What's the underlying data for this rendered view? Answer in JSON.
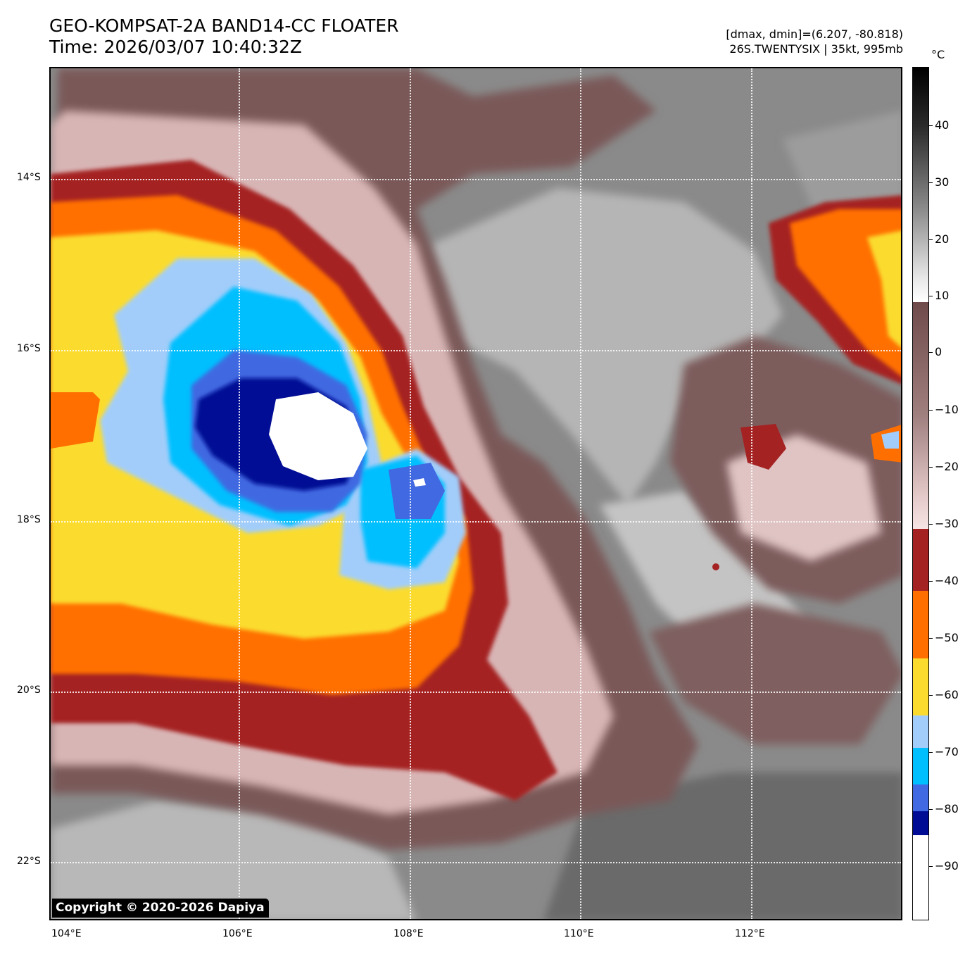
{
  "header": {
    "title_line1": "GEO-KOMPSAT-2A BAND14-CC FLOATER",
    "title_line2": "Time: 2026/03/07 10:40:32Z",
    "info_line1": "[dmax, dmin]=(6.207, -80.818)",
    "info_line2": "26S.TWENTYSIX | 35kt, 995mb"
  },
  "map": {
    "lat_labels": [
      "14°S",
      "16°S",
      "18°S",
      "20°S",
      "22°S"
    ],
    "lon_labels": [
      "104°E",
      "106°E",
      "108°E",
      "110°E",
      "112°E"
    ],
    "copyright": "Copyright © 2020-2026 Dapiya"
  },
  "colorbar": {
    "unit": "°C",
    "ticks": [
      "40",
      "30",
      "20",
      "10",
      "0",
      "−10",
      "−20",
      "−30",
      "−40",
      "−50",
      "−60",
      "−70",
      "−80",
      "−90"
    ],
    "colors": {
      "black": "#000000",
      "gray_dark": "#4a4a4a",
      "gray_light": "#cfcfcf",
      "white": "#ffffff",
      "brown_dark": "#6f4a4a",
      "brown_light": "#c9a3a3",
      "pink": "#f5dede",
      "red": "#a52222",
      "orange": "#ff6f00",
      "yellow": "#fbdc2e",
      "light_blue": "#a2cdfa",
      "cyan": "#00bfff",
      "royal_blue": "#4169e1",
      "navy": "#000c94"
    }
  }
}
